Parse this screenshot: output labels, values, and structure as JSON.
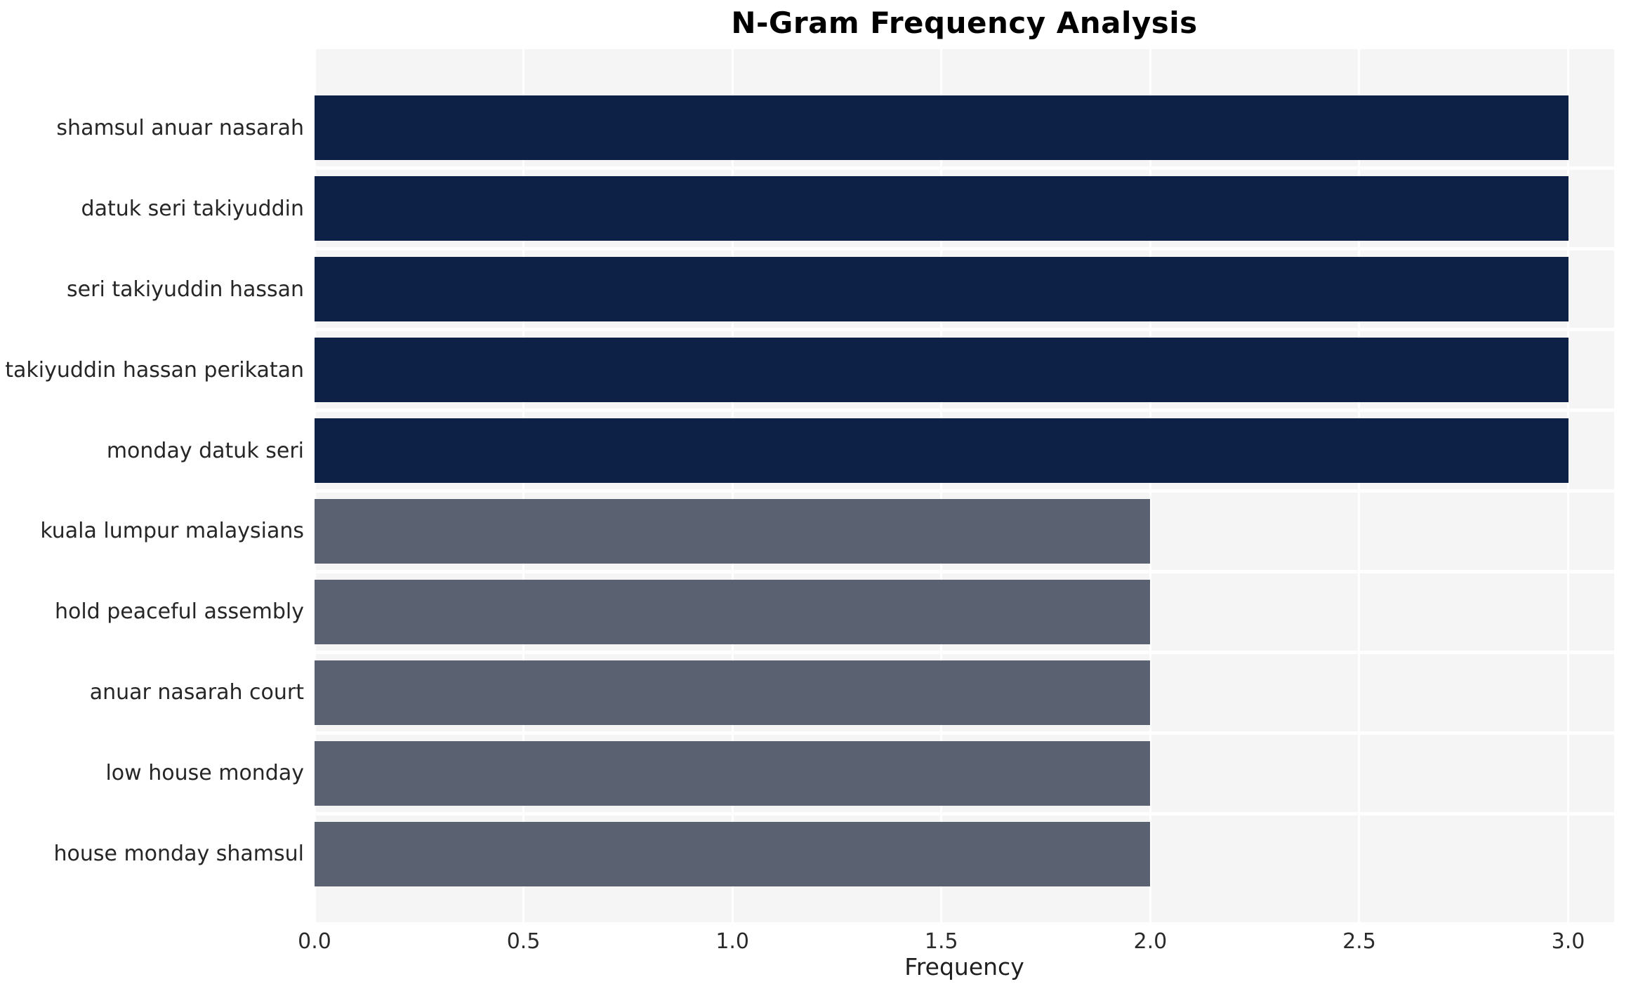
{
  "chart_data": {
    "type": "bar",
    "orientation": "horizontal",
    "title": "N-Gram Frequency Analysis",
    "xlabel": "Frequency",
    "ylabel": "",
    "categories": [
      "shamsul anuar nasarah",
      "datuk seri takiyuddin",
      "seri takiyuddin hassan",
      "takiyuddin hassan perikatan",
      "monday datuk seri",
      "kuala lumpur malaysians",
      "hold peaceful assembly",
      "anuar nasarah court",
      "low house monday",
      "house monday shamsul"
    ],
    "values": [
      3,
      3,
      3,
      3,
      3,
      2,
      2,
      2,
      2,
      2
    ],
    "bar_colors": [
      "#0c2145",
      "#0c2145",
      "#0c2145",
      "#0c2145",
      "#0c2145",
      "#5a6170",
      "#5a6170",
      "#5a6170",
      "#5a6170",
      "#5a6170"
    ],
    "xticks": [
      0,
      0.5,
      1,
      1.5,
      2,
      2.5,
      3
    ],
    "xtick_labels": [
      "0.0",
      "0.5",
      "1.0",
      "1.5",
      "2.0",
      "2.5",
      "3.0"
    ],
    "xlim": [
      0,
      3.11
    ],
    "grid": true,
    "legend": false,
    "plot_background": "#f5f5f6",
    "grid_color": "#ffffff"
  }
}
